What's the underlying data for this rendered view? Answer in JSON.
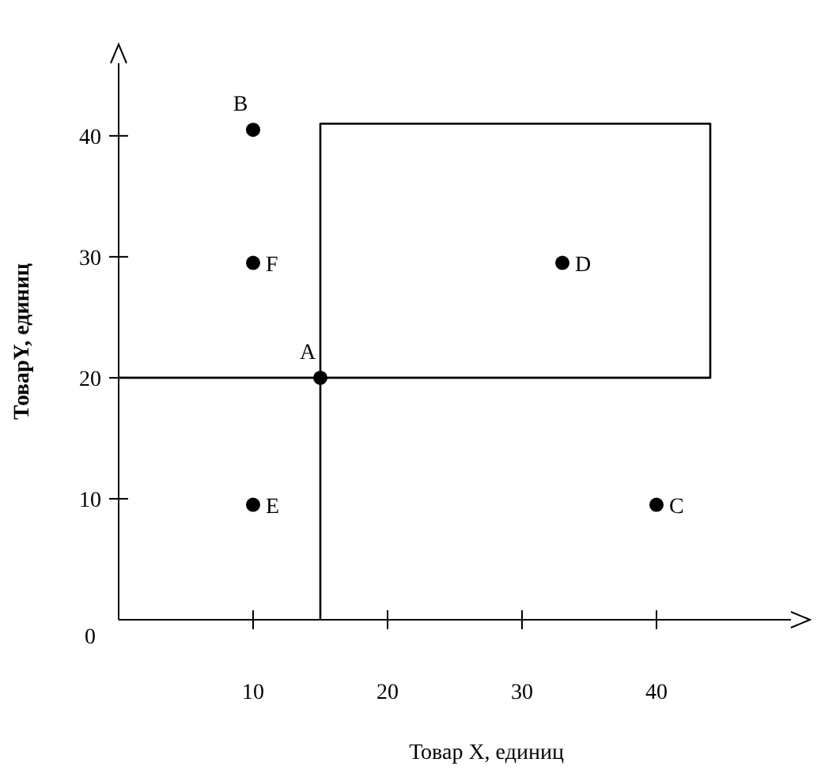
{
  "chart_data": {
    "type": "scatter",
    "xlabel": "Товар X, единиц",
    "ylabel": "ТоварY, единиц",
    "xlim": [
      0,
      50
    ],
    "ylim": [
      0,
      46
    ],
    "xticks": [
      10,
      20,
      30,
      40
    ],
    "yticks": [
      0,
      10,
      20,
      30,
      40
    ],
    "grid": false,
    "series": [
      {
        "type": "line",
        "color": "#000000",
        "marker": "none",
        "line_style": "solid",
        "x": [
          15,
          15,
          44,
          44,
          0
        ],
        "values": [
          0,
          41,
          41,
          20,
          20
        ]
      },
      {
        "color": "#000000",
        "marker": "circle",
        "x": [
          15,
          10,
          40,
          33,
          10,
          10
        ],
        "values": [
          20,
          40.5,
          9.5,
          29.5,
          9.5,
          29.5
        ],
        "value_labels": [
          "A",
          "B",
          "C",
          "D",
          "E",
          "F"
        ]
      }
    ]
  }
}
